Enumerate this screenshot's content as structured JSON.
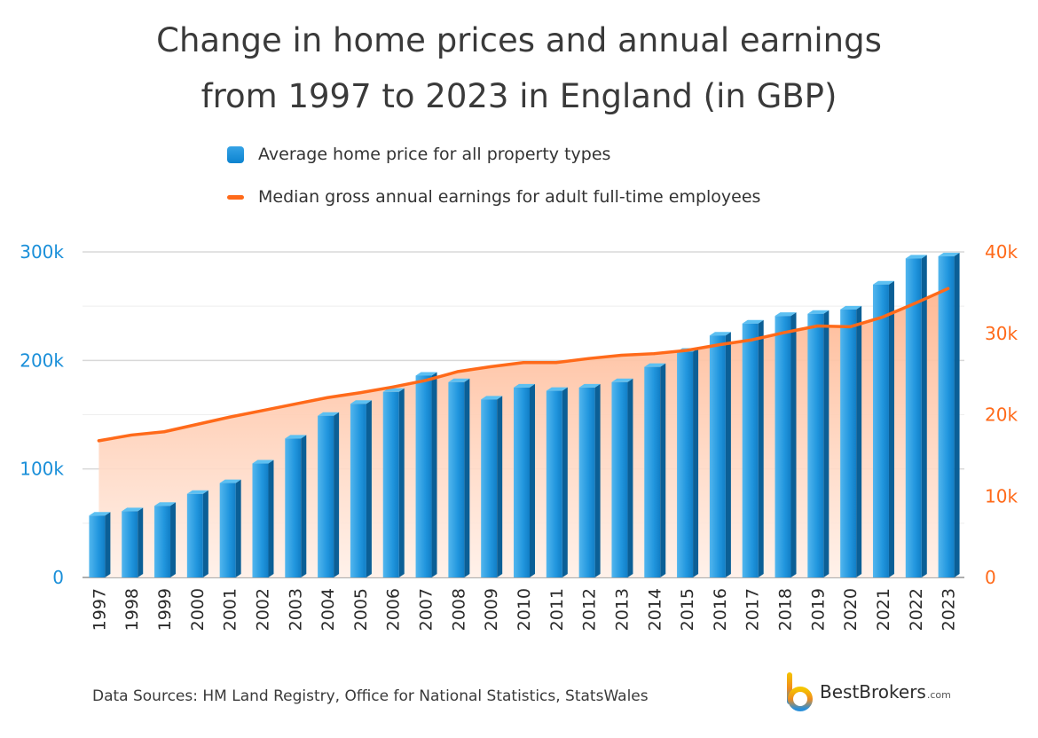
{
  "title_line1": "Change in home prices and annual earnings",
  "title_line2": "from 1997 to 2023 in England (in GBP)",
  "legend": {
    "bars_label": "Average home price for all property types",
    "line_label": "Median gross annual earnings for adult full-time employees"
  },
  "source": "Data Sources: HM Land Registry, Office for National Statistics, StatsWales",
  "brand": {
    "name": "BestBrokers",
    "domain": ".com"
  },
  "colors": {
    "bar": "#1a8fd9",
    "bar_dark": "#0b5f96",
    "line": "#ff6a1a",
    "area": "#ffc7a8",
    "left_axis": "#1a8fd9",
    "right_axis": "#ff6a1a",
    "grid": "#e4e4e4"
  },
  "chart_data": {
    "type": "bar",
    "categories": [
      "1997",
      "1998",
      "1999",
      "2000",
      "2001",
      "2002",
      "2003",
      "2004",
      "2005",
      "2006",
      "2007",
      "2008",
      "2009",
      "2010",
      "2011",
      "2012",
      "2013",
      "2014",
      "2015",
      "2016",
      "2017",
      "2018",
      "2019",
      "2020",
      "2021",
      "2022",
      "2023"
    ],
    "series": [
      {
        "name": "Average home price for all property types",
        "type": "bar",
        "axis": "left",
        "values": [
          57000,
          61000,
          66000,
          77000,
          87000,
          105000,
          128000,
          149000,
          160000,
          171000,
          186000,
          180000,
          164000,
          175000,
          172000,
          175000,
          180000,
          194000,
          208000,
          223000,
          234000,
          241000,
          243000,
          247000,
          270000,
          294000,
          296000
        ]
      },
      {
        "name": "Median gross annual earnings for adult full-time employees",
        "type": "line",
        "axis": "right",
        "values": [
          16800,
          17500,
          17900,
          18800,
          19700,
          20500,
          21300,
          22100,
          22700,
          23400,
          24200,
          25300,
          25900,
          26400,
          26400,
          26900,
          27300,
          27500,
          27900,
          28600,
          29200,
          30100,
          30900,
          30800,
          32000,
          33700,
          35500
        ]
      }
    ],
    "y_left": {
      "min": 0,
      "max": 300000,
      "ticks": [
        0,
        100000,
        200000,
        300000
      ],
      "tick_labels": [
        "0",
        "100k",
        "200k",
        "300k"
      ]
    },
    "y_right": {
      "min": 0,
      "max": 40000,
      "ticks": [
        0,
        10000,
        20000,
        30000,
        40000
      ],
      "tick_labels": [
        "0",
        "10k",
        "20k",
        "30k",
        "40k"
      ]
    },
    "grid": true,
    "legend_position": "top"
  }
}
